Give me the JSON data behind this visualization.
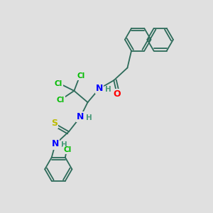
{
  "background_color": "#e0e0e0",
  "bond_color": "#2d6b5a",
  "bond_width": 1.3,
  "atom_colors": {
    "O": "#ff0000",
    "N": "#0000ff",
    "S": "#bbbb00",
    "Cl": "#00bb00",
    "C": "#2d6b5a",
    "H": "#4a9a7a"
  },
  "font_size": 7.5
}
